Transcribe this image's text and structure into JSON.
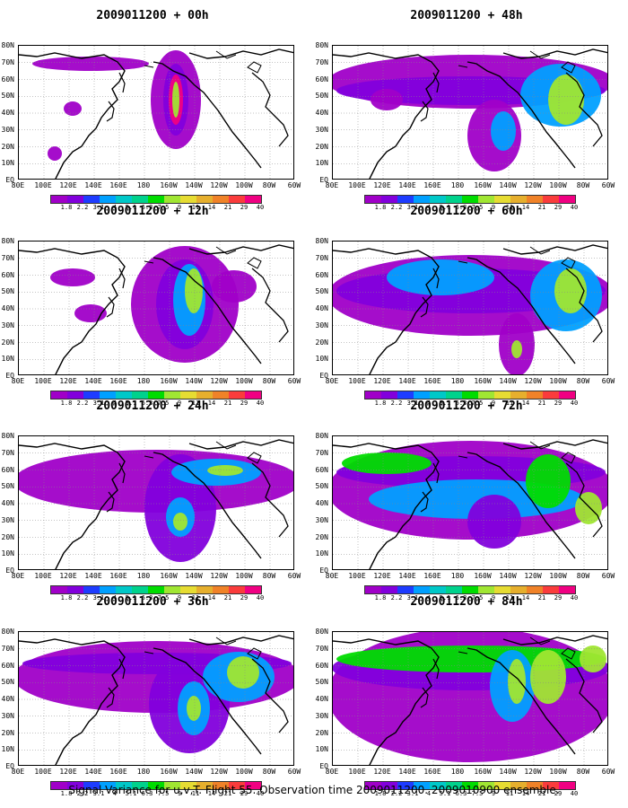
{
  "panels": [
    {
      "title": "2009011200 + 00h"
    },
    {
      "title": "2009011200 + 48h"
    },
    {
      "title": "2009011200 + 12h"
    },
    {
      "title": "2009011200 + 60h"
    },
    {
      "title": "2009011200 + 24h"
    },
    {
      "title": "2009011200 + 72h"
    },
    {
      "title": "2009011200 + 36h"
    },
    {
      "title": "2009011200 + 84h"
    }
  ],
  "lat_labels": [
    "80N",
    "70N",
    "60N",
    "50N",
    "40N",
    "30N",
    "20N",
    "10N",
    "EQ"
  ],
  "lon_labels": [
    "80E",
    "100E",
    "120E",
    "140E",
    "160E",
    "180",
    "160W",
    "140W",
    "120W",
    "100W",
    "80W",
    "60W"
  ],
  "colorbar": {
    "labels": [
      "1.8",
      "2.2",
      "3.1",
      "4",
      "5.1",
      "6.3",
      "7.5",
      "9",
      "11",
      "14",
      "21",
      "29",
      "40"
    ],
    "colors": [
      "#a000c8",
      "#8200dc",
      "#1e3cff",
      "#00a0ff",
      "#00c8c8",
      "#00d28c",
      "#00dc00",
      "#a0e632",
      "#e6dc32",
      "#e6af2d",
      "#f08228",
      "#fa3c3c",
      "#f00082"
    ]
  },
  "caption": "Signal Variance for u,v,T. Flight 55. Observation time 2009011200. 2009010900 ensemble."
}
